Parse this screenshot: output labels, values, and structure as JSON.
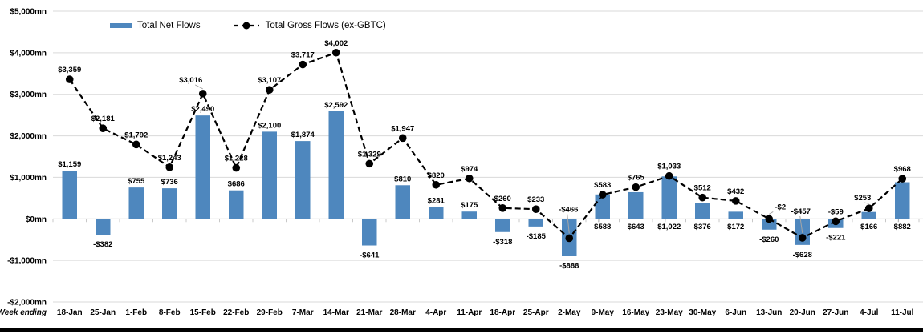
{
  "chart_data": {
    "type": "combo-bar-line",
    "xlabel": "Week ending",
    "categories": [
      "18-Jan",
      "25-Jan",
      "1-Feb",
      "8-Feb",
      "15-Feb",
      "22-Feb",
      "29-Feb",
      "7-Mar",
      "14-Mar",
      "21-Mar",
      "28-Mar",
      "4-Apr",
      "11-Apr",
      "18-Apr",
      "25-Apr",
      "2-May",
      "9-May",
      "16-May",
      "23-May",
      "30-May",
      "6-Jun",
      "13-Jun",
      "20-Jun",
      "27-Jun",
      "4-Jul",
      "11-Jul"
    ],
    "series": [
      {
        "name": "Total Net Flows",
        "type": "bar",
        "color": "#4E87BE",
        "values": [
          1159,
          -382,
          755,
          736,
          2490,
          686,
          2100,
          1874,
          2592,
          -641,
          810,
          281,
          175,
          -318,
          -185,
          -888,
          588,
          643,
          1022,
          376,
          172,
          -260,
          -628,
          -221,
          166,
          882
        ]
      },
      {
        "name": "Total Gross Flows (ex-GBTC)",
        "type": "line",
        "color": "#000000",
        "values": [
          3359,
          2181,
          1792,
          1243,
          3016,
          1228,
          3107,
          3717,
          4002,
          1329,
          1947,
          820,
          974,
          260,
          233,
          -466,
          583,
          765,
          1033,
          512,
          432,
          -2,
          -457,
          -59,
          253,
          968
        ]
      }
    ],
    "ylim": [
      -2000,
      5000
    ],
    "ytick_step": 1000,
    "ytick_labels": [
      "$5,000mn",
      "$4,000mn",
      "$3,000mn",
      "$2,000mn",
      "$1,000mn",
      "$0mn",
      "-$1,000mn",
      "-$2,000mn"
    ],
    "grid": true,
    "legend_position": "top",
    "value_prefix": "$",
    "value_suffix": "mn",
    "colors": {
      "bar": "#4E87BE",
      "line": "#000000",
      "grid": "#D9D9D9",
      "tick": "#C8C8C8",
      "leader": "#A6A6A6",
      "divider": "#000000",
      "text": "#000000"
    }
  },
  "label_hints": {
    "bar_label_below_axis": [
      16,
      17,
      18,
      19,
      20,
      24,
      25
    ],
    "bar_leader_indices": [
      16,
      18,
      25
    ],
    "line_label_offsets": {
      "4": [
        -15,
        -14
      ],
      "15": [
        -1,
        -33
      ],
      "21": [
        14,
        -12
      ],
      "22": [
        -2,
        -30
      ],
      "24": [
        -8,
        -10
      ]
    },
    "line_leader_indices": [
      4,
      15,
      21,
      22,
      24
    ]
  }
}
